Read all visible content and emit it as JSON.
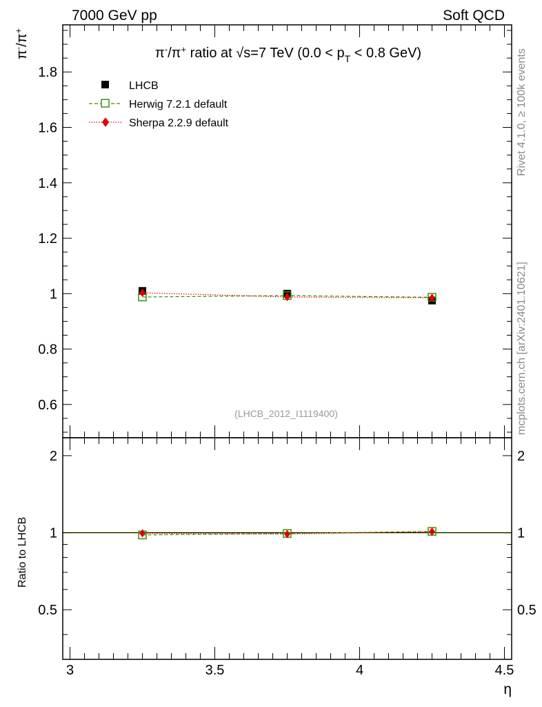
{
  "header": {
    "left": "7000 GeV pp",
    "right": "Soft QCD"
  },
  "side_text": {
    "top": "Rivet 4.1.0, ≥ 100k events",
    "bottom": "mcplots.cern.ch [arXiv:2401.10621]"
  },
  "chart_data": {
    "type": "scatter",
    "title": "π⁻/π⁺ ratio at √s=7 TeV (0.0 < p_T < 0.8 GeV)",
    "title_parts": {
      "prefix": "π",
      "sup1": "-",
      "mid1": "/π",
      "sup2": "+",
      "mid2": " ratio at ",
      "sqrt": "√",
      "s_eq": "s=7 TeV (0.0 < p",
      "sub": "T",
      "suffix": " < 0.8 GeV)"
    },
    "ylabel_main": {
      "base1": "π",
      "sup1": "-",
      "base2": "/π",
      "sup2": "+"
    },
    "ylabel_ratio": "Ratio to LHCB",
    "xlabel": "η",
    "analysis_id": "(LHCB_2012_I1119400)",
    "x": [
      3.25,
      3.75,
      4.25
    ],
    "xlim": [
      2.975,
      4.525
    ],
    "ylim_main": [
      0.48,
      1.97
    ],
    "ylim_ratio": [
      0.32,
      2.35
    ],
    "x_ticks": [
      "3",
      "3.5",
      "4",
      "4.5"
    ],
    "y_ticks_main": [
      "0.6",
      "0.8",
      "1",
      "1.2",
      "1.4",
      "1.6",
      "1.8"
    ],
    "y_ticks_ratio": [
      "0.5",
      "1",
      "2"
    ],
    "series": [
      {
        "name": "LHCB",
        "marker": "filled-square",
        "color": "#000000",
        "values": [
          1.01,
          1.0,
          0.975
        ],
        "errors": [
          0.004,
          0.004,
          0.004
        ],
        "ratio": [
          1.0,
          1.0,
          1.0
        ]
      },
      {
        "name": "Herwig 7.2.1 default",
        "marker": "open-square",
        "color": "#3a8f0c",
        "values": [
          0.988,
          0.993,
          0.987
        ],
        "ratio": [
          0.98,
          0.993,
          1.012
        ]
      },
      {
        "name": "Sherpa 2.2.9 default",
        "marker": "diamond",
        "color": "#e00000",
        "values": [
          1.003,
          0.988,
          0.985
        ],
        "ratio": [
          0.995,
          0.988,
          1.01
        ]
      }
    ],
    "band_color": "#ccff66",
    "legend_position": "top-left"
  }
}
